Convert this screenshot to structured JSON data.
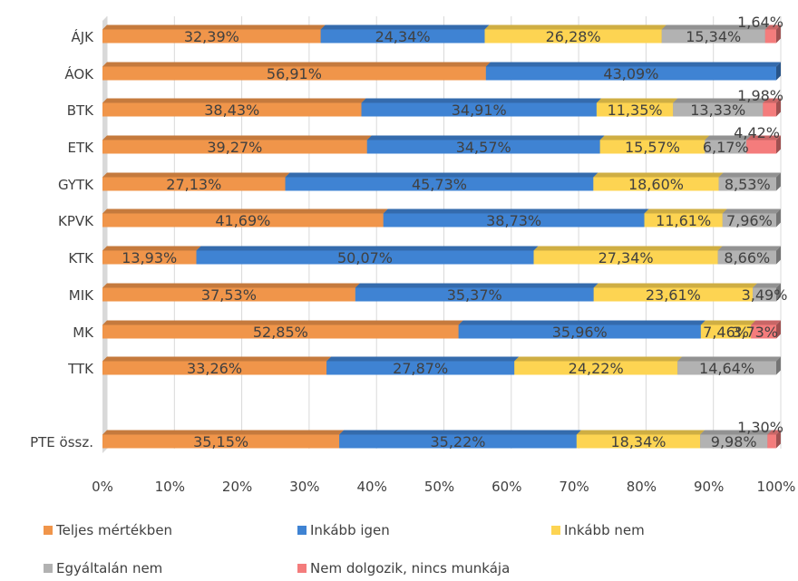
{
  "chart_data": {
    "type": "bar",
    "orientation": "horizontal",
    "stacked": "percent",
    "style": "3d",
    "categories": [
      "ÁJK",
      "ÁOK",
      "BTK",
      "ETK",
      "GYTK",
      "KPVK",
      "KTK",
      "MIK",
      "MK",
      "TTK",
      "PTE össz."
    ],
    "series": [
      {
        "name": "Teljes mértékben",
        "color": "#f0954a",
        "values": [
          32.39,
          56.91,
          38.43,
          39.27,
          27.13,
          41.69,
          13.93,
          37.53,
          52.85,
          33.26,
          35.15
        ],
        "labels": [
          "32,39%",
          "56,91%",
          "38,43%",
          "39,27%",
          "27,13%",
          "41,69%",
          "13,93%",
          "37,53%",
          "52,85%",
          "33,26%",
          "35,15%"
        ]
      },
      {
        "name": "Inkább igen",
        "color": "#3f83d3",
        "values": [
          24.34,
          43.09,
          34.91,
          34.57,
          45.73,
          38.73,
          50.07,
          35.37,
          35.96,
          27.87,
          35.22
        ],
        "labels": [
          "24,34%",
          "43,09%",
          "34,91%",
          "34,57%",
          "45,73%",
          "38,73%",
          "50,07%",
          "35,37%",
          "35,96%",
          "27,87%",
          "35,22%"
        ]
      },
      {
        "name": "Inkább nem",
        "color": "#fdd452",
        "values": [
          26.28,
          0,
          11.35,
          15.57,
          18.6,
          11.61,
          27.34,
          23.61,
          7.46,
          24.22,
          18.34
        ],
        "labels": [
          "26,28%",
          "",
          "11,35%",
          "15,57%",
          "18,60%",
          "11,61%",
          "27,34%",
          "23,61%",
          "7,46%",
          "24,22%",
          "18,34%"
        ]
      },
      {
        "name": "Egyáltalán nem",
        "color": "#b2b2b2",
        "values": [
          15.34,
          0,
          13.33,
          6.17,
          8.53,
          7.96,
          8.66,
          3.49,
          0,
          14.64,
          9.98
        ],
        "labels": [
          "15,34%",
          "",
          "13,33%",
          "6,17%",
          "8,53%",
          "7,96%",
          "8,66%",
          "3,49%",
          "",
          "14,64%",
          "9,98%"
        ]
      },
      {
        "name": "Nem dolgozik, nincs munkája",
        "color": "#f47c7c",
        "values": [
          1.64,
          0,
          1.98,
          4.42,
          0,
          0,
          0,
          0,
          3.73,
          0,
          1.3
        ],
        "labels": [
          "1,64%",
          "",
          "1,98%",
          "4,42%",
          "",
          "",
          "",
          "",
          "3,73%",
          "",
          "1,30%"
        ]
      }
    ],
    "xlim": [
      0,
      100
    ],
    "x_ticks": [
      "0%",
      "10%",
      "20%",
      "30%",
      "40%",
      "50%",
      "60%",
      "70%",
      "80%",
      "90%",
      "100%"
    ],
    "grid": true,
    "legend_position": "bottom"
  }
}
